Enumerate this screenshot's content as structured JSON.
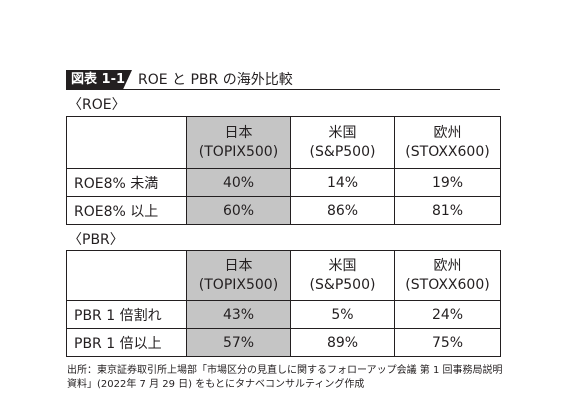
{
  "figure": {
    "tag": "図表 1-1",
    "title": "ROE と PBR の海外比較"
  },
  "roe_section": {
    "label": "〈ROE〉",
    "columns": [
      {
        "name": "日本",
        "index": "(TOPIX500)"
      },
      {
        "name": "米国",
        "index": "(S&P500)"
      },
      {
        "name": "欧州",
        "index": "(STOXX600)"
      }
    ],
    "rows": [
      {
        "label": "ROE8% 未満",
        "values": [
          "40%",
          "14%",
          "19%"
        ]
      },
      {
        "label": "ROE8% 以上",
        "values": [
          "60%",
          "86%",
          "81%"
        ]
      }
    ]
  },
  "pbr_section": {
    "label": "〈PBR〉",
    "columns": [
      {
        "name": "日本",
        "index": "(TOPIX500)"
      },
      {
        "name": "米国",
        "index": "(S&P500)"
      },
      {
        "name": "欧州",
        "index": "(STOXX600)"
      }
    ],
    "rows": [
      {
        "label": "PBR 1 倍割れ",
        "values": [
          "43%",
          "5%",
          "24%"
        ]
      },
      {
        "label": "PBR 1 倍以上",
        "values": [
          "57%",
          "89%",
          "75%"
        ]
      }
    ]
  },
  "source_note": "出所：東京証券取引所上場部「市場区分の見直しに関するフォローアップ会議 第 1 回事務局説明資料」(2022年 7 月 29 日) をもとにタナベコンサルティング作成",
  "colors": {
    "highlight_column": "#c5c5c5",
    "text": "#231f20"
  }
}
